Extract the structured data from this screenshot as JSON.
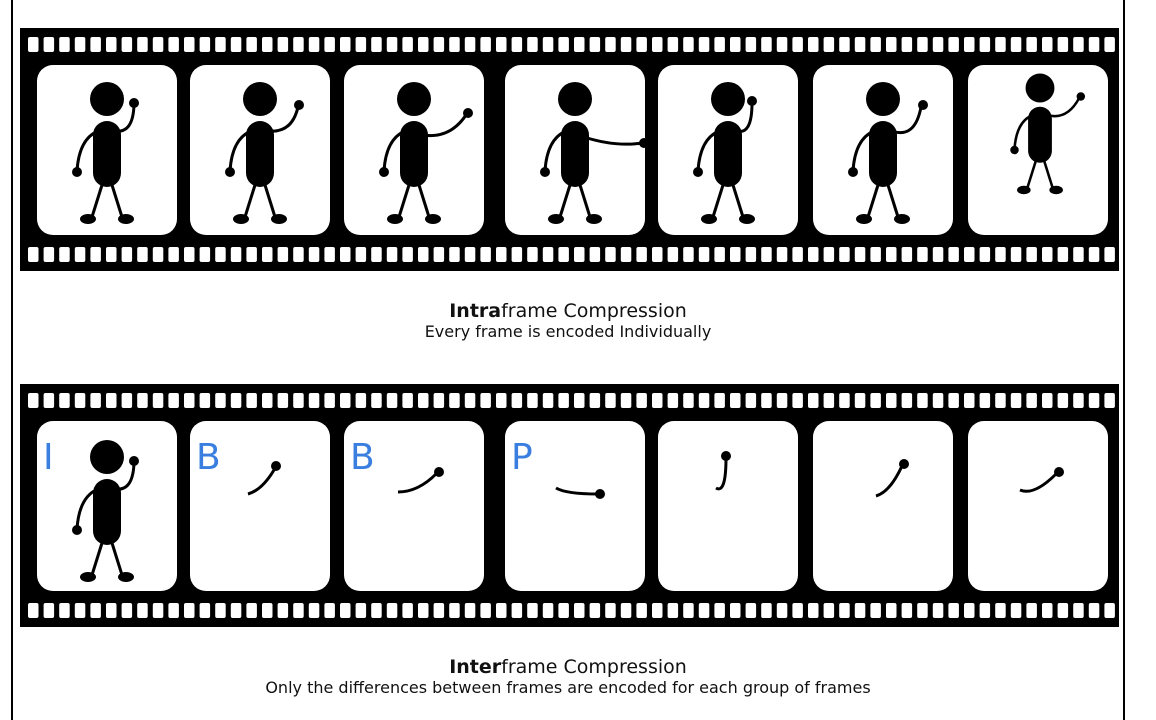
{
  "intraframe": {
    "title_bold": "Intra",
    "title_rest": "frame Compression",
    "subtitle": "Every frame is encoded Individually"
  },
  "interframe": {
    "title_bold": "Inter",
    "title_rest": "frame Compression",
    "subtitle": "Only the differences between frames are encoded for each group of frames",
    "frame_labels": [
      "I",
      "B",
      "B",
      "P",
      "",
      "",
      ""
    ]
  },
  "colors": {
    "film": "#000000",
    "frame": "#ffffff",
    "label": "#3a7fe0"
  },
  "icons": [
    "film-strip-icon",
    "stick-figure-icon",
    "raised-arm-icon"
  ]
}
